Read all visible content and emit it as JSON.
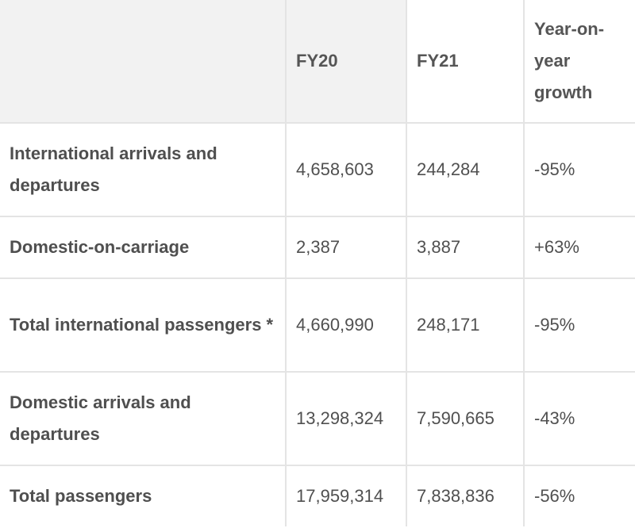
{
  "table": {
    "headers": [
      "",
      "FY20",
      "FY21",
      "Year-on-year growth"
    ],
    "rows": [
      {
        "label": "International arrivals and departures",
        "fy20": "4,658,603",
        "fy21": "244,284",
        "growth": "-95%"
      },
      {
        "label": "Domestic-on-carriage",
        "fy20": "2,387",
        "fy21": "3,887",
        "growth": "+63%"
      },
      {
        "label": "Total international passengers *",
        "fy20": "4,660,990",
        "fy21": "248,171",
        "growth": "-95%"
      },
      {
        "label": "Domestic arrivals and departures",
        "fy20": "13,298,324",
        "fy21": "7,590,665",
        "growth": "-43%"
      },
      {
        "label": "Total passengers",
        "fy20": "17,959,314",
        "fy21": "7,838,836",
        "growth": "-56%"
      }
    ]
  }
}
